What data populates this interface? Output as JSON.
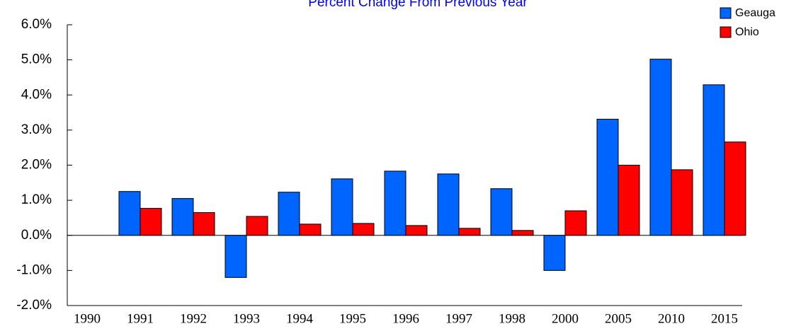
{
  "chart_data": {
    "type": "bar",
    "title": "Percent Change From Previous Year",
    "categories": [
      "1990",
      "1991",
      "1992",
      "1993",
      "1994",
      "1995",
      "1996",
      "1997",
      "1998",
      "2000",
      "2005",
      "2010",
      "2015"
    ],
    "series": [
      {
        "name": "Geauga",
        "color": "#0064ff",
        "values": [
          null,
          1.25,
          1.05,
          -1.2,
          1.23,
          1.61,
          1.83,
          1.75,
          1.33,
          -1.0,
          3.31,
          5.02,
          4.29
        ]
      },
      {
        "name": "Ohio",
        "color": "#ff0000",
        "values": [
          null,
          0.77,
          0.65,
          0.54,
          0.32,
          0.34,
          0.28,
          0.2,
          0.14,
          0.7,
          2.0,
          1.87,
          2.66
        ]
      }
    ],
    "ylim": [
      -2,
      6
    ],
    "yticks": [
      {
        "value": -2,
        "label": "-2.0%"
      },
      {
        "value": -1,
        "label": "-1.0%"
      },
      {
        "value": 0,
        "label": "0.0%"
      },
      {
        "value": 1,
        "label": "1.0%"
      },
      {
        "value": 2,
        "label": "2.0%"
      },
      {
        "value": 3,
        "label": "3.0%"
      },
      {
        "value": 4,
        "label": "4.0%"
      },
      {
        "value": 5,
        "label": "5.0%"
      },
      {
        "value": 6,
        "label": "6.0%"
      }
    ],
    "legend": "top-right"
  }
}
